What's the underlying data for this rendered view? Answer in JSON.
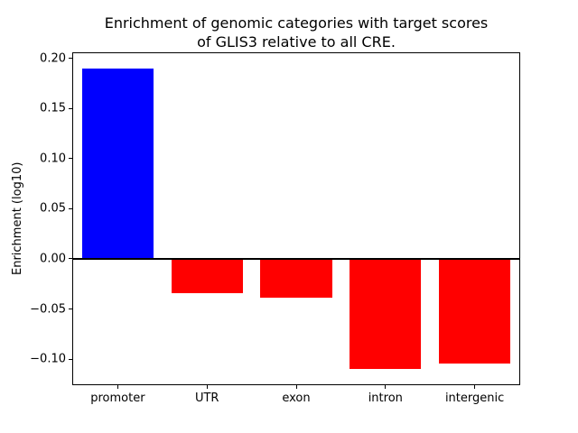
{
  "figure": {
    "background": "#ffffff"
  },
  "chart_data": {
    "type": "bar",
    "title": "Enrichment of genomic categories with target scores\nof GLIS3 relative to all CRE.",
    "ylabel": "Enrichment (log10)",
    "xlabel": "",
    "categories": [
      "promoter",
      "UTR",
      "exon",
      "intron",
      "intergenic"
    ],
    "values": [
      0.19,
      -0.034,
      -0.039,
      -0.11,
      -0.104
    ],
    "colors": [
      "#0000ff",
      "#ff0000",
      "#ff0000",
      "#ff0000",
      "#ff0000"
    ],
    "ylim": [
      -0.125,
      0.205
    ],
    "yticks": [
      {
        "value": 0.2,
        "label": "0.20"
      },
      {
        "value": 0.15,
        "label": "0.15"
      },
      {
        "value": 0.1,
        "label": "0.10"
      },
      {
        "value": 0.05,
        "label": "0.05"
      },
      {
        "value": 0.0,
        "label": "0.00"
      },
      {
        "value": -0.05,
        "label": "−0.05"
      },
      {
        "value": -0.1,
        "label": "−0.10"
      }
    ],
    "bar_width_fraction": 0.8,
    "zero_line": true,
    "grid": false,
    "legend": null
  }
}
